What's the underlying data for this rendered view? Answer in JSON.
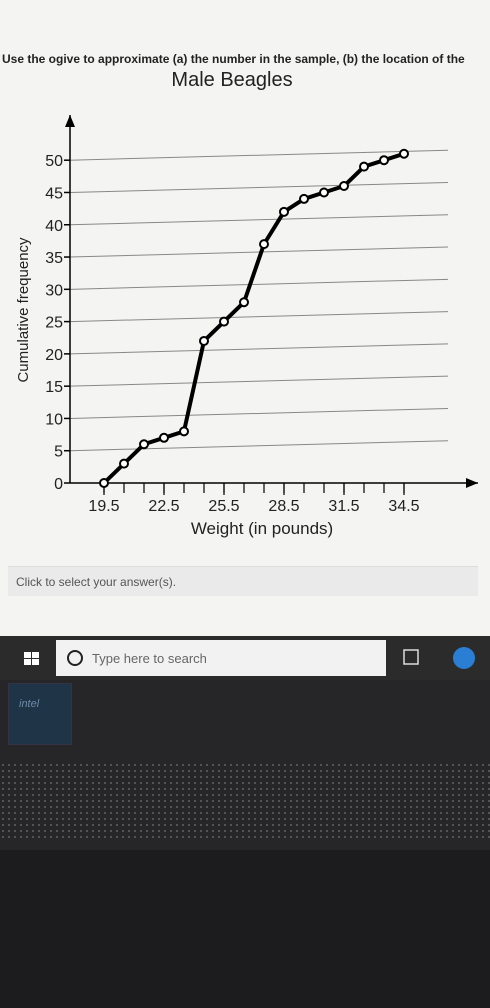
{
  "question": "Use the ogive to approximate (a) the number in the sample, (b) the location of the",
  "chart_data": {
    "type": "line",
    "title": "Male Beagles",
    "x_label": "Weight (in pounds)",
    "y_label": "Cumulative frequency",
    "x": [
      19.5,
      20.5,
      21.5,
      22.5,
      23.5,
      24.5,
      25.5,
      26.5,
      27.5,
      28.5,
      29.5,
      30.5,
      31.5,
      32.5,
      33.5,
      34.5
    ],
    "series": [
      {
        "name": "Male Beagles",
        "color": "#000000",
        "values": [
          0,
          3,
          6,
          7,
          8,
          22,
          25,
          28,
          37,
          42,
          44,
          45,
          46,
          49,
          50,
          51
        ]
      }
    ],
    "xlim": [
      17.8,
      38.2
    ],
    "ylim": [
      0,
      57
    ],
    "xticks": [
      19.5,
      22.5,
      25.5,
      28.5,
      31.5,
      34.5
    ],
    "yticks": [
      0,
      5,
      10,
      15,
      20,
      25,
      30,
      35,
      40,
      45,
      50
    ],
    "grid": true
  },
  "prompt": "Click to select your answer(s).",
  "search_placeholder": "Type here to search",
  "sticker": "intel"
}
